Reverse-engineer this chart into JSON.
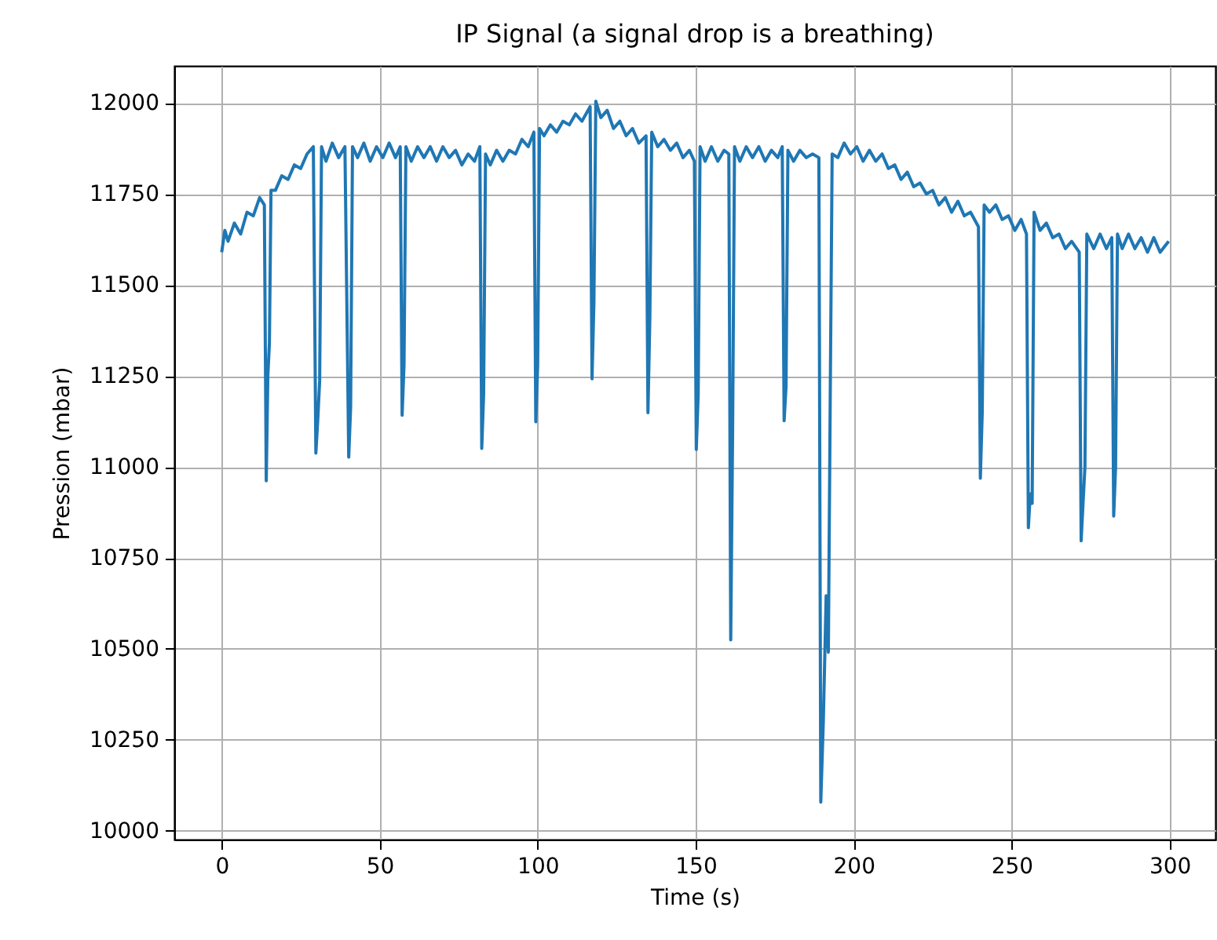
{
  "chart_data": {
    "type": "line",
    "title": "IP Signal (a signal drop is a breathing)",
    "xlabel": "Time (s)",
    "ylabel": "Pression (mbar)",
    "x": [
      0,
      1,
      2,
      4,
      6,
      8,
      10,
      12,
      13.5,
      14.1,
      14.6,
      15.1,
      15.6,
      17,
      19,
      21,
      23,
      25,
      27,
      29,
      29.8,
      30.4,
      31,
      31.6,
      33,
      35,
      37,
      39,
      40.2,
      40.8,
      41.4,
      43,
      45,
      47,
      49,
      51,
      53,
      55,
      56.5,
      57.1,
      57.7,
      58.3,
      60,
      62,
      64,
      66,
      68,
      70,
      72,
      74,
      76,
      78,
      80,
      81.7,
      82.3,
      82.9,
      83.5,
      85,
      87,
      89,
      91,
      93,
      95,
      97,
      98.8,
      99.4,
      100,
      100.6,
      102,
      104,
      106,
      108,
      110,
      112,
      114,
      116.6,
      117.2,
      117.8,
      118.4,
      120,
      122,
      124,
      126,
      128,
      130,
      132,
      134.3,
      134.9,
      135.5,
      136.1,
      138,
      140,
      142,
      144,
      146,
      148,
      149.6,
      150.2,
      150.8,
      151.4,
      153,
      155,
      157,
      159,
      160.5,
      161.1,
      161.7,
      162.3,
      164,
      166,
      168,
      170,
      172,
      174,
      176,
      177.4,
      178,
      178.6,
      179.2,
      181,
      183,
      185,
      187,
      189,
      189.6,
      190.4,
      191.3,
      192,
      192.6,
      193.2,
      195,
      197,
      199,
      201,
      203,
      205,
      207,
      209,
      211,
      213,
      215,
      217,
      219,
      221,
      223,
      225,
      227,
      229,
      231,
      233,
      235,
      237,
      239.5,
      240.1,
      240.7,
      241.3,
      243,
      245,
      247,
      249,
      251,
      253,
      254.7,
      255.3,
      255.9,
      256.5,
      257.1,
      259,
      261,
      263,
      265,
      267,
      269,
      271.4,
      272,
      272.6,
      273.2,
      273.8,
      276,
      278,
      280,
      281.7,
      282.3,
      282.9,
      283.5,
      285,
      287,
      289,
      291,
      293,
      295,
      297,
      299.7
    ],
    "series": [
      {
        "color": "#1f77b4",
        "values": [
          11590,
          11650,
          11620,
          11670,
          11640,
          11700,
          11690,
          11740,
          11720,
          10962,
          11250,
          11340,
          11760,
          11760,
          11800,
          11790,
          11830,
          11820,
          11860,
          11880,
          11038,
          11130,
          11236,
          11880,
          11840,
          11890,
          11850,
          11880,
          11027,
          11163,
          11880,
          11850,
          11890,
          11840,
          11880,
          11850,
          11890,
          11850,
          11880,
          11142,
          11280,
          11880,
          11840,
          11880,
          11850,
          11880,
          11840,
          11880,
          11850,
          11870,
          11830,
          11860,
          11840,
          11880,
          11051,
          11200,
          11860,
          11830,
          11870,
          11840,
          11870,
          11860,
          11900,
          11880,
          11920,
          11124,
          11280,
          11930,
          11910,
          11940,
          11920,
          11950,
          11940,
          11970,
          11950,
          11990,
          11242,
          11452,
          12005,
          11960,
          11980,
          11930,
          11950,
          11910,
          11930,
          11890,
          11910,
          11149,
          11409,
          11920,
          11880,
          11900,
          11870,
          11890,
          11850,
          11870,
          11840,
          11048,
          11200,
          11880,
          11840,
          11880,
          11840,
          11870,
          11860,
          10525,
          11100,
          11880,
          11840,
          11880,
          11850,
          11880,
          11840,
          11870,
          11850,
          11880,
          11127,
          11220,
          11870,
          11840,
          11870,
          11850,
          11860,
          11850,
          10079,
          10300,
          10646,
          10491,
          11200,
          11860,
          11850,
          11890,
          11860,
          11880,
          11840,
          11870,
          11840,
          11860,
          11820,
          11830,
          11790,
          11810,
          11770,
          11780,
          11750,
          11760,
          11720,
          11740,
          11700,
          11730,
          11690,
          11700,
          11660,
          10969,
          11150,
          11720,
          11700,
          11720,
          11680,
          11690,
          11650,
          11680,
          11640,
          10833,
          10926,
          10900,
          11700,
          11650,
          11670,
          11630,
          11640,
          11600,
          11620,
          11590,
          10797,
          10900,
          11000,
          11640,
          11600,
          11640,
          11600,
          11630,
          10865,
          11000,
          11640,
          11600,
          11640,
          11600,
          11630,
          11590,
          11630,
          11590,
          11620
        ]
      }
    ],
    "xlim": [
      -15,
      314.5
    ],
    "ylim": [
      9976,
      12102
    ],
    "xticks": [
      0,
      50,
      100,
      150,
      200,
      250,
      300
    ],
    "yticks": [
      10000,
      10250,
      10500,
      10750,
      11000,
      11250,
      11500,
      11750,
      12000
    ],
    "grid": true
  }
}
